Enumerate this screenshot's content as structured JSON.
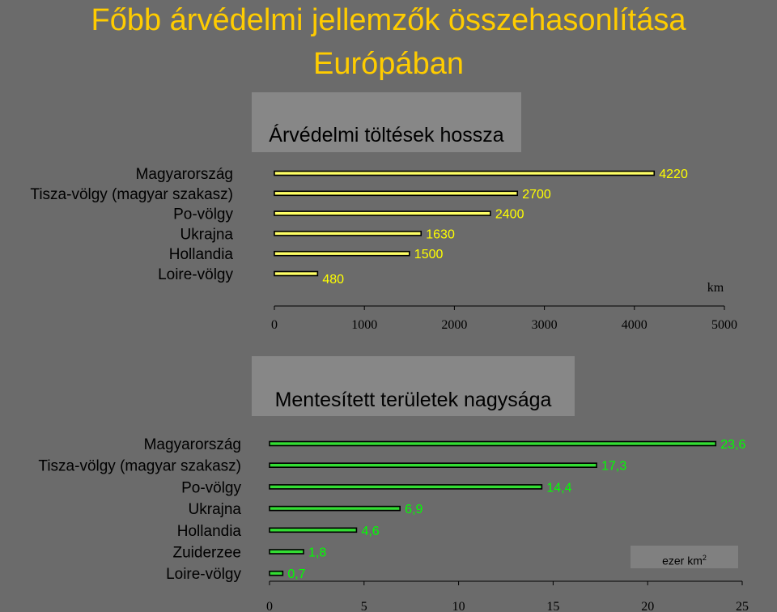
{
  "title": {
    "line1": "Főbb árvédelmi jellemzők összehasonlítása",
    "line2": "Európában"
  },
  "colors": {
    "background": "#6b6b6b",
    "title": "#ffcc00",
    "bar_levees": "#ffff66",
    "bar_areas": "#33dd33",
    "label_levees": "#ffff00",
    "label_areas": "#00ff00"
  },
  "chart_data": [
    {
      "type": "bar",
      "orientation": "horizontal",
      "title": "Árvédelmi töltések hossza",
      "unit": "km",
      "categories": [
        "Magyarország",
        "Tisza-völgy (magyar szakasz)",
        "Po-völgy",
        "Ukrajna",
        "Hollandia",
        "Loire-völgy"
      ],
      "values": [
        4220,
        2700,
        2400,
        1630,
        1500,
        480
      ],
      "value_labels": [
        "4220",
        "2700",
        "2400",
        "1630",
        "1500",
        "480"
      ],
      "xlim": [
        0,
        5000
      ],
      "xticks": [
        "0",
        "1000",
        "2000",
        "3000",
        "4000",
        "5000"
      ]
    },
    {
      "type": "bar",
      "orientation": "horizontal",
      "title": "Mentesített területek nagysága",
      "unit": "ezer km",
      "unit_sup": "2",
      "categories": [
        "Magyarország",
        "Tisza-völgy (magyar szakasz)",
        "Po-völgy",
        "Ukrajna",
        "Hollandia",
        "Zuiderzee",
        "Loire-völgy"
      ],
      "values": [
        23.6,
        17.3,
        14.4,
        6.9,
        4.6,
        1.8,
        0.7
      ],
      "value_labels": [
        "23,6",
        "17,3",
        "14,4",
        "6,9",
        "4,6",
        "1,8",
        "0,7"
      ],
      "xlim": [
        0,
        25
      ],
      "xticks": [
        "0",
        "5",
        "10",
        "15",
        "20",
        "25"
      ]
    }
  ]
}
